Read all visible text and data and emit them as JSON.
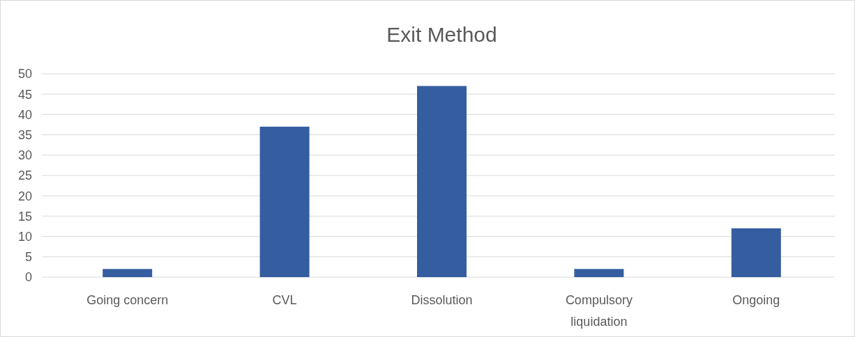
{
  "chart_data": {
    "type": "bar",
    "title": "Exit Method",
    "categories": [
      "Going concern",
      "CVL",
      "Dissolution",
      "Compulsory liquidation",
      "Ongoing"
    ],
    "values": [
      2,
      37,
      47,
      2,
      12
    ],
    "color": "#355ea1",
    "ylim": [
      0,
      50
    ],
    "yticks": [
      0,
      5,
      10,
      15,
      20,
      25,
      30,
      35,
      40,
      45,
      50
    ],
    "grid": "y"
  }
}
